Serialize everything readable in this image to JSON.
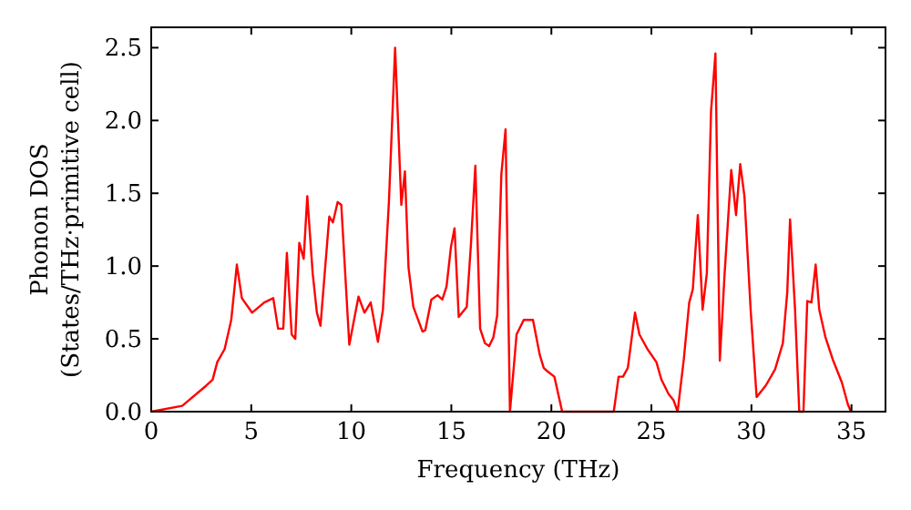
{
  "chart_data": {
    "type": "line",
    "xlabel": "Frequency (THz)",
    "ylabel": "Phonon DOS\n(States/THz·primitive cell)",
    "xlim": [
      0,
      36.7
    ],
    "ylim": [
      0,
      2.64
    ],
    "xticks": [
      0,
      5,
      10,
      15,
      20,
      25,
      30,
      35
    ],
    "yticks": [
      {
        "value": 0,
        "label": "0.0"
      },
      0.5,
      {
        "value": 1,
        "label": "1.0"
      },
      1.5,
      {
        "value": 2,
        "label": "2.0"
      },
      2.5
    ],
    "grid": false,
    "marker": "none",
    "line_style": "solid",
    "series": [
      {
        "color": "#ff0000",
        "x": [
          0,
          1.55,
          2.76,
          3.07,
          3.3,
          3.67,
          4.0,
          4.28,
          4.53,
          5.04,
          5.65,
          6.1,
          6.34,
          6.6,
          6.78,
          7.02,
          7.2,
          7.4,
          7.62,
          7.8,
          8.07,
          8.28,
          8.46,
          8.9,
          9.08,
          9.32,
          9.5,
          9.9,
          10.36,
          10.66,
          10.97,
          11.33,
          11.58,
          11.88,
          12.19,
          12.5,
          12.68,
          12.86,
          13.1,
          13.56,
          13.7,
          14.0,
          14.31,
          14.55,
          14.76,
          14.98,
          15.16,
          15.37,
          15.77,
          15.98,
          16.2,
          16.44,
          16.68,
          16.89,
          17.1,
          17.29,
          17.5,
          17.71,
          17.93,
          18.26,
          18.62,
          19.08,
          19.42,
          19.62,
          19.78,
          20.15,
          20.54,
          23.12,
          23.36,
          23.58,
          23.82,
          24.18,
          24.4,
          24.8,
          25.25,
          25.5,
          25.86,
          26.1,
          26.31,
          26.62,
          26.89,
          27.07,
          27.32,
          27.56,
          27.77,
          27.98,
          28.2,
          28.42,
          28.66,
          28.99,
          29.23,
          29.44,
          29.65,
          29.96,
          30.26,
          30.72,
          31.18,
          31.57,
          31.79,
          31.93,
          32.18,
          32.39,
          32.6,
          32.79,
          33.0,
          33.21,
          33.39,
          33.7,
          34.06,
          34.52,
          34.82,
          34.97
        ],
        "values": [
          0,
          0.04,
          0.18,
          0.22,
          0.34,
          0.43,
          0.63,
          1.01,
          0.78,
          0.68,
          0.75,
          0.78,
          0.57,
          0.57,
          1.09,
          0.53,
          0.5,
          1.16,
          1.05,
          1.48,
          0.95,
          0.68,
          0.59,
          1.34,
          1.3,
          1.44,
          1.42,
          0.46,
          0.79,
          0.68,
          0.75,
          0.48,
          0.7,
          1.44,
          2.5,
          1.42,
          1.65,
          0.99,
          0.72,
          0.55,
          0.56,
          0.77,
          0.8,
          0.77,
          0.86,
          1.13,
          1.26,
          0.65,
          0.72,
          1.15,
          1.69,
          0.57,
          0.47,
          0.45,
          0.51,
          0.66,
          1.63,
          1.94,
          0,
          0.53,
          0.63,
          0.63,
          0.39,
          0.3,
          0.28,
          0.24,
          0,
          0,
          0.24,
          0.24,
          0.3,
          0.68,
          0.53,
          0.43,
          0.34,
          0.22,
          0.12,
          0.08,
          0,
          0.36,
          0.75,
          0.84,
          1.35,
          0.7,
          0.95,
          2.06,
          2.46,
          0.35,
          0.95,
          1.66,
          1.35,
          1.7,
          1.48,
          0.7,
          0.1,
          0.18,
          0.29,
          0.47,
          0.82,
          1.32,
          0.7,
          0,
          0,
          0.76,
          0.75,
          1.01,
          0.7,
          0.51,
          0.36,
          0.2,
          0.05,
          0
        ]
      }
    ]
  }
}
